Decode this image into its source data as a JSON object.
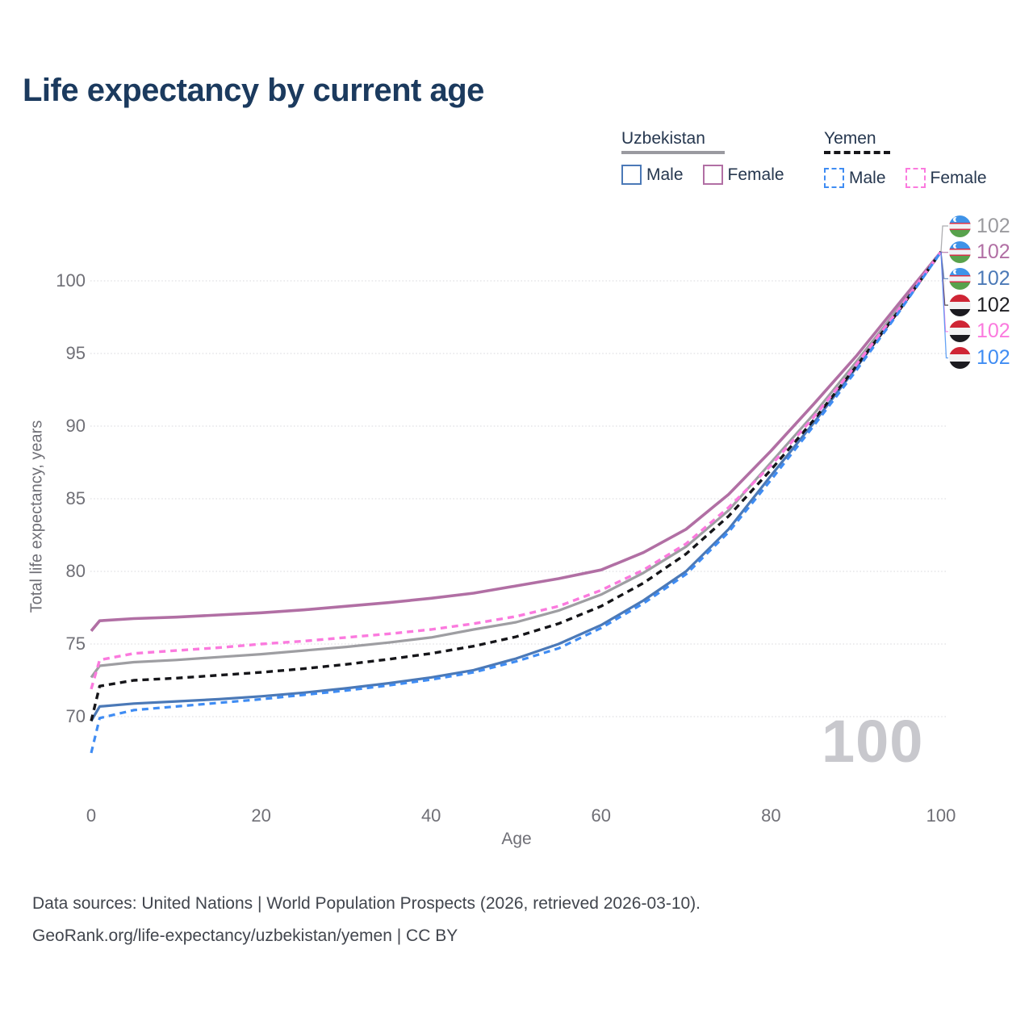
{
  "title": "Life expectancy by current age",
  "legend": {
    "groups": [
      {
        "name": "Uzbekistan",
        "line_style": "solid",
        "underline_color": "#9a9aa0",
        "items": [
          {
            "label": "Male",
            "color": "#4b79b7",
            "dashed": false
          },
          {
            "label": "Female",
            "color": "#b16fa4",
            "dashed": false
          }
        ]
      },
      {
        "name": "Yemen",
        "line_style": "dashed",
        "underline_color": "#17171b",
        "items": [
          {
            "label": "Male",
            "color": "#3f8cf3",
            "dashed": true
          },
          {
            "label": "Female",
            "color": "#fb7ade",
            "dashed": true
          }
        ]
      }
    ]
  },
  "chart_data": {
    "type": "line",
    "title": "Life expectancy by current age",
    "xlabel": "Age",
    "ylabel": "Total life expectancy, years",
    "x_ticks": [
      0,
      20,
      40,
      60,
      80,
      100
    ],
    "y_ticks": [
      70,
      75,
      80,
      85,
      90,
      95,
      100
    ],
    "xlim": [
      0,
      100
    ],
    "ylim": [
      66.5,
      103
    ],
    "grid": "horizontal-dotted",
    "legend_position": "top-right",
    "x": [
      0,
      1,
      5,
      10,
      15,
      20,
      25,
      30,
      35,
      40,
      45,
      50,
      55,
      60,
      65,
      70,
      75,
      80,
      85,
      90,
      95,
      100
    ],
    "series": [
      {
        "key": "uzbekistan-total",
        "name": "Uzbekistan — Total",
        "color": "#9e9ea2",
        "dash": null,
        "width": 3.2,
        "values": [
          72.7,
          73.5,
          73.75,
          73.9,
          74.1,
          74.3,
          74.55,
          74.8,
          75.1,
          75.45,
          76.0,
          76.5,
          77.3,
          78.4,
          79.9,
          81.7,
          84.2,
          87.5,
          90.8,
          94.4,
          98.1,
          102
        ]
      },
      {
        "key": "uzbekistan-male",
        "name": "Uzbekistan — Male",
        "color": "#4b79b7",
        "dash": null,
        "width": 3.2,
        "values": [
          69.7,
          70.7,
          70.9,
          71.05,
          71.2,
          71.4,
          71.65,
          71.95,
          72.3,
          72.7,
          73.2,
          74.0,
          75.0,
          76.3,
          78.0,
          80.0,
          82.9,
          86.6,
          90.2,
          94.0,
          97.9,
          102
        ]
      },
      {
        "key": "uzbekistan-female",
        "name": "Uzbekistan — Female",
        "color": "#b16fa4",
        "dash": null,
        "width": 3.6,
        "values": [
          75.9,
          76.6,
          76.75,
          76.85,
          77.0,
          77.15,
          77.35,
          77.6,
          77.85,
          78.15,
          78.5,
          79.0,
          79.5,
          80.1,
          81.3,
          82.9,
          85.3,
          88.3,
          91.5,
          94.8,
          98.4,
          102
        ]
      },
      {
        "key": "yemen-total",
        "name": "Yemen — Total",
        "color": "#151519",
        "dash": "8 6",
        "width": 3.4,
        "values": [
          69.7,
          72.1,
          72.5,
          72.65,
          72.85,
          73.05,
          73.3,
          73.6,
          73.95,
          74.35,
          74.85,
          75.5,
          76.4,
          77.6,
          79.2,
          81.2,
          83.8,
          87.0,
          90.4,
          94.1,
          97.9,
          102
        ]
      },
      {
        "key": "yemen-female",
        "name": "Yemen — Female",
        "color": "#fb7ade",
        "dash": "8 6",
        "width": 3.4,
        "values": [
          71.9,
          73.9,
          74.35,
          74.55,
          74.75,
          75.0,
          75.2,
          75.45,
          75.7,
          76.0,
          76.4,
          76.9,
          77.6,
          78.7,
          80.1,
          81.9,
          84.4,
          87.3,
          90.6,
          94.2,
          98.0,
          102
        ]
      },
      {
        "key": "yemen-male",
        "name": "Yemen — Male",
        "color": "#3f8cf3",
        "dash": "8 6",
        "width": 3.2,
        "values": [
          67.5,
          69.9,
          70.45,
          70.7,
          70.95,
          71.2,
          71.5,
          71.8,
          72.15,
          72.55,
          73.05,
          73.8,
          74.7,
          76.1,
          77.8,
          79.8,
          82.7,
          86.3,
          90.0,
          93.8,
          97.8,
          102
        ]
      }
    ],
    "end_labels": [
      {
        "flag": "uzbekistan",
        "series": "Uzbekistan — Total",
        "value": "102",
        "color": "#9a9a9e"
      },
      {
        "flag": "uzbekistan",
        "series": "Uzbekistan — Female",
        "value": "102",
        "color": "#b16fa4"
      },
      {
        "flag": "uzbekistan",
        "series": "Uzbekistan — Male",
        "value": "102",
        "color": "#4b79b7"
      },
      {
        "flag": "yemen",
        "series": "Yemen — Total",
        "value": "102",
        "color": "#1f1f23"
      },
      {
        "flag": "yemen",
        "series": "Yemen — Female",
        "value": "102",
        "color": "#fb7ade"
      },
      {
        "flag": "yemen",
        "series": "Yemen — Male",
        "value": "102",
        "color": "#3f8cf3"
      }
    ]
  },
  "watermark": "100",
  "footer": {
    "line1": "Data sources: United Nations | World Population Prospects (2026, retrieved 2026-03-10).",
    "line2": "GeoRank.org/life-expectancy/uzbekistan/yemen | CC BY"
  }
}
